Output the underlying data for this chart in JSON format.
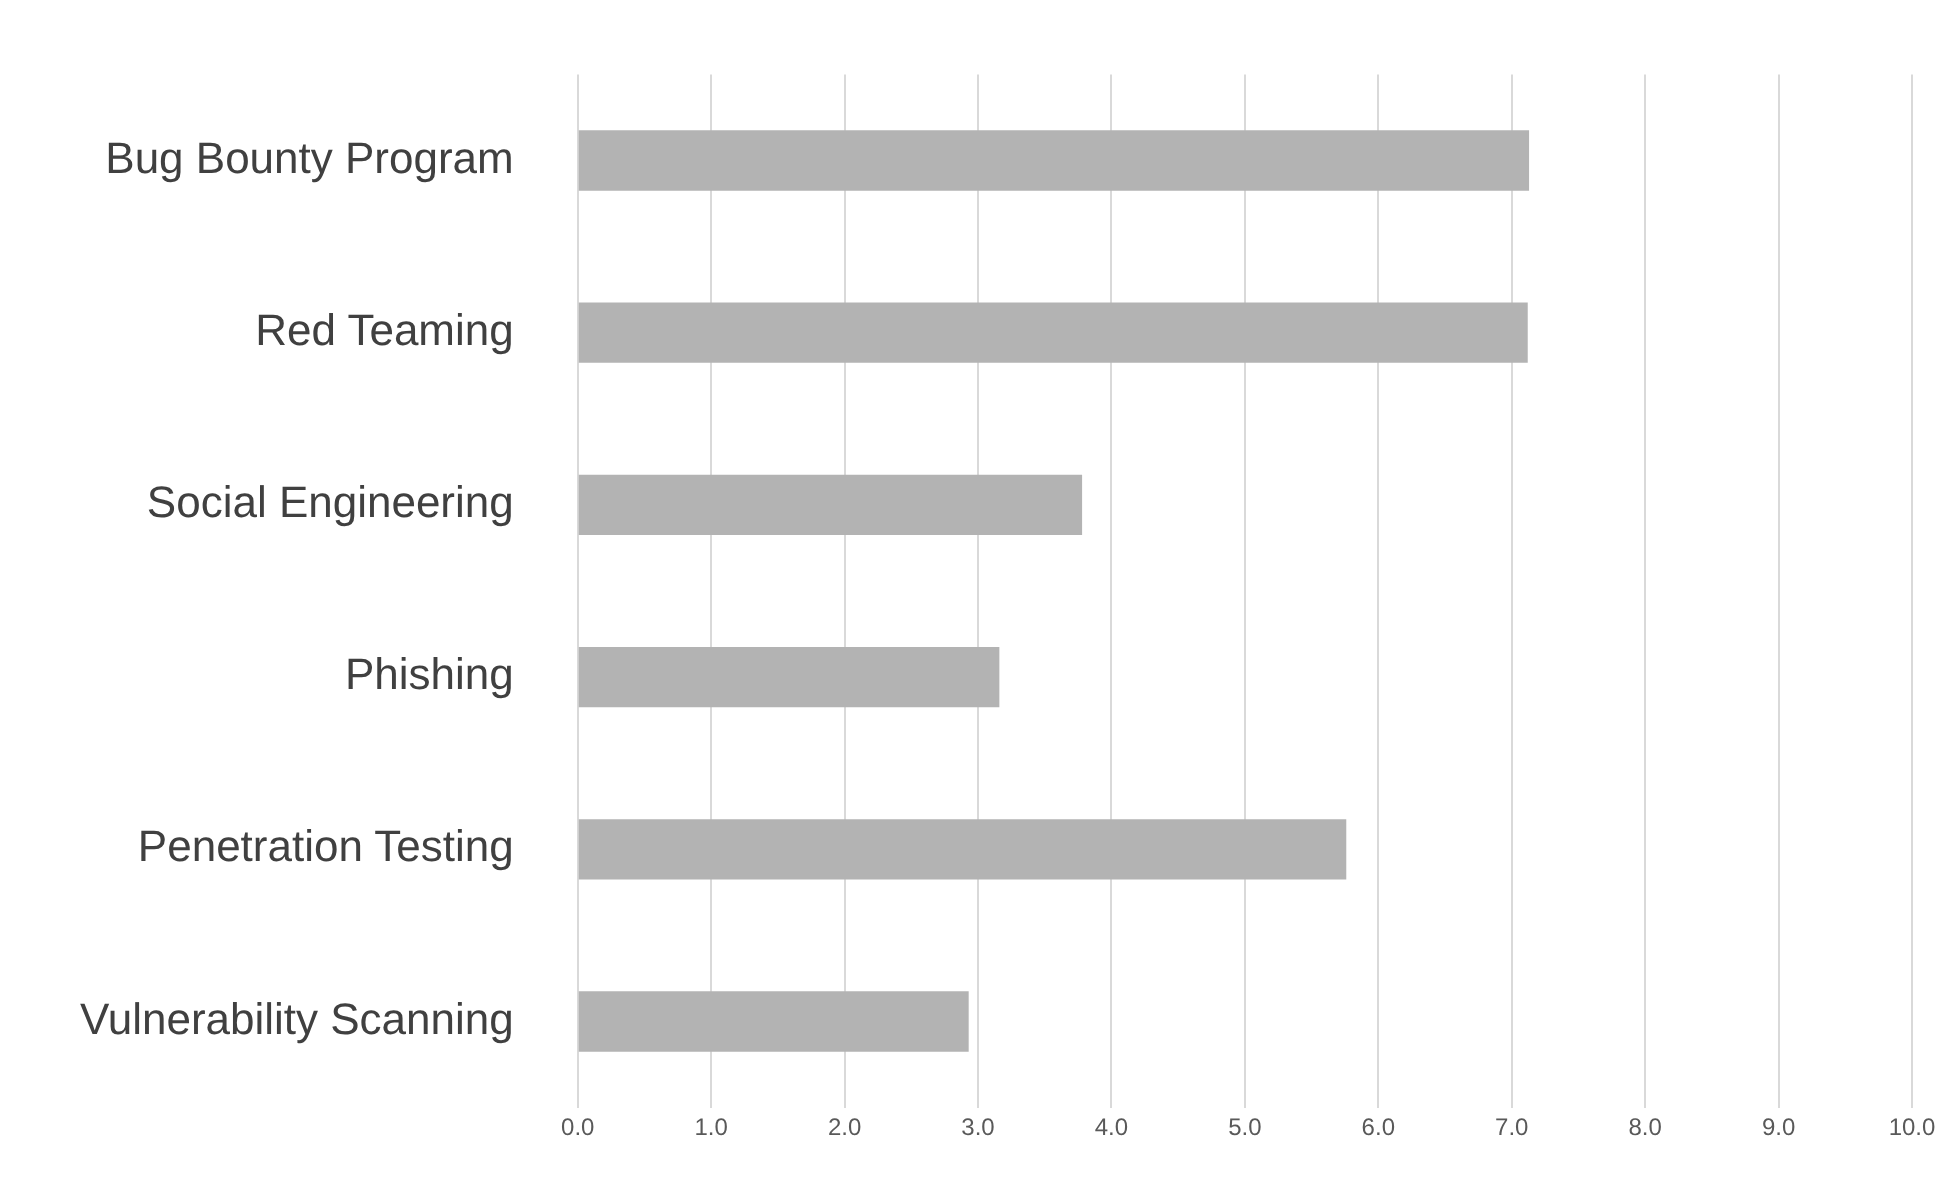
{
  "chart_data": {
    "type": "bar",
    "orientation": "horizontal",
    "categories": [
      "Bug Bounty Program",
      "Red Teaming",
      "Social Engineering",
      "Phishing",
      "Penetration Testing",
      "Vulnerability Scanning"
    ],
    "values": [
      7.13,
      7.12,
      3.78,
      3.16,
      5.76,
      2.93
    ],
    "color": "#b3b3b3",
    "xlim": [
      0,
      10
    ],
    "xticks": [
      {
        "value": 0,
        "label": "0.0"
      },
      {
        "value": 1,
        "label": "1.0"
      },
      {
        "value": 2,
        "label": "2.0"
      },
      {
        "value": 3,
        "label": "3.0"
      },
      {
        "value": 4,
        "label": "4.0"
      },
      {
        "value": 5,
        "label": "5.0"
      },
      {
        "value": 6,
        "label": "6.0"
      },
      {
        "value": 7,
        "label": "7.0"
      },
      {
        "value": 8,
        "label": "8.0"
      },
      {
        "value": 9,
        "label": "9.0"
      },
      {
        "value": 10,
        "label": "10.0"
      }
    ],
    "grid": "x",
    "legend": false
  }
}
